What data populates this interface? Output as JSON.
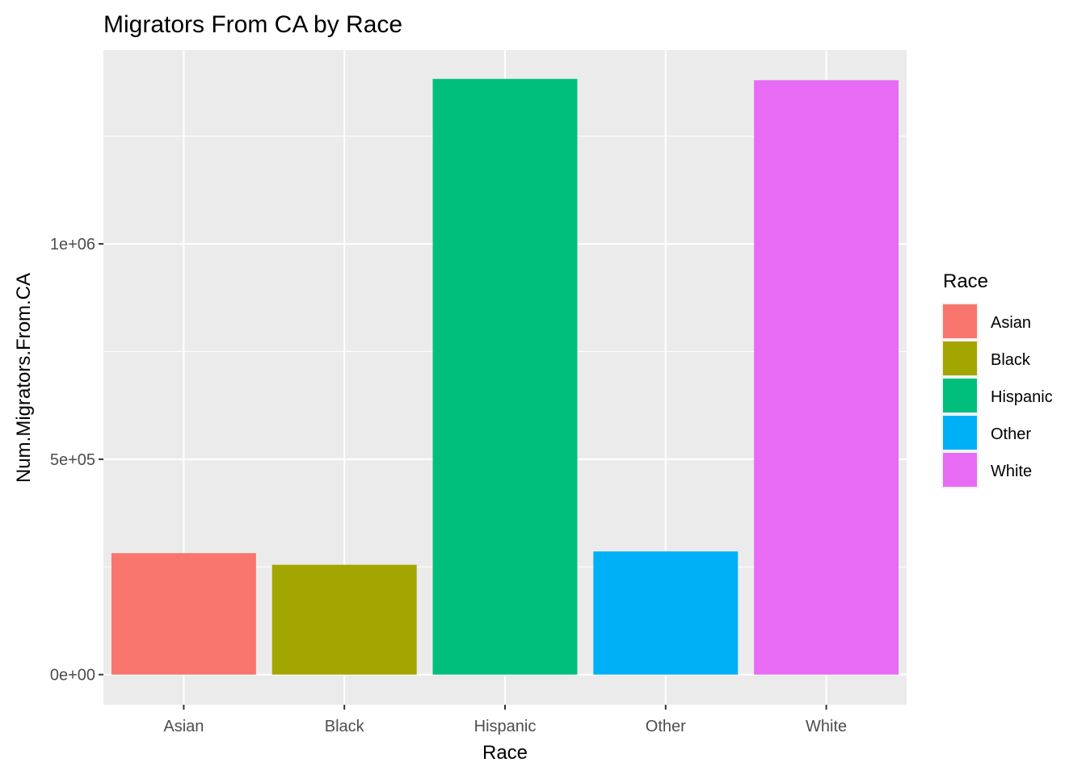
{
  "chart_data": {
    "type": "bar",
    "title": "Migrators From CA by Race",
    "xlabel": "Race",
    "ylabel": "Num.Migrators.From.CA",
    "categories": [
      "Asian",
      "Black",
      "Hispanic",
      "Other",
      "White"
    ],
    "values": [
      282000,
      255000,
      1383000,
      286000,
      1380000
    ],
    "colors": [
      "#F8766D",
      "#A3A500",
      "#00BF7D",
      "#00B0F6",
      "#E76BF3"
    ],
    "ylim": [
      -70000,
      1450000
    ],
    "yticks": [
      {
        "value": 0,
        "label": "0e+00"
      },
      {
        "value": 500000,
        "label": "5e+05"
      },
      {
        "value": 1000000,
        "label": "1e+06"
      }
    ],
    "y_minor_ticks": [
      250000,
      750000,
      1250000
    ],
    "grid": true,
    "panel_background": "#EBEBEB",
    "grid_color": "#FFFFFF",
    "legend": {
      "title": "Race",
      "position": "right",
      "entries": [
        "Asian",
        "Black",
        "Hispanic",
        "Other",
        "White"
      ]
    }
  }
}
